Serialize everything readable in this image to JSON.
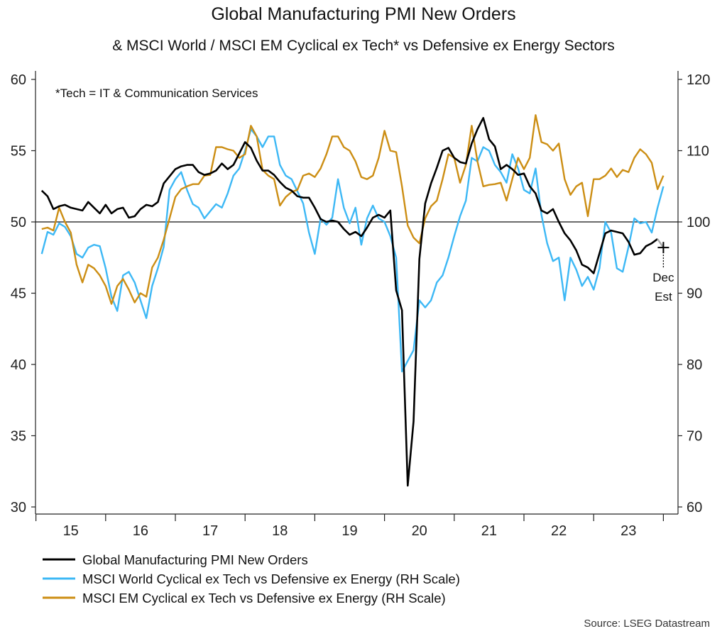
{
  "chart_data": {
    "type": "line",
    "title": "Global Manufacturing PMI New Orders",
    "subtitle": "& MSCI World / MSCI EM Cyclical ex Tech* vs Defensive ex Energy Sectors",
    "note": "*Tech = IT & Communication Services",
    "source": "Source: LSEG Datastream",
    "x_tick_labels": [
      "15",
      "16",
      "17",
      "18",
      "19",
      "20",
      "21",
      "22",
      "23"
    ],
    "x_range": [
      "2015-01",
      "2024-02"
    ],
    "frequency": "monthly",
    "y_left": {
      "range": [
        30,
        60
      ],
      "ticks": [
        30,
        35,
        40,
        45,
        50,
        55,
        60
      ]
    },
    "y_right": {
      "range": [
        60,
        120
      ],
      "ticks": [
        60,
        70,
        80,
        90,
        100,
        110,
        120
      ]
    },
    "reference_line": {
      "left_value": 50,
      "right_value": 100
    },
    "grid": false,
    "legend_position": "bottom-left",
    "annotation": {
      "line1": "Dec",
      "line2": "Est",
      "date": "2023-12",
      "value": 48.2
    },
    "series": [
      {
        "name": "Global Manufacturing PMI New Orders",
        "axis": "left",
        "color": "#000000",
        "start": "2015-01",
        "values": [
          52.2,
          51.8,
          50.9,
          51.1,
          51.2,
          51.0,
          50.9,
          50.8,
          51.4,
          51.0,
          50.6,
          51.2,
          50.6,
          50.9,
          51.0,
          50.3,
          50.4,
          50.9,
          51.2,
          51.1,
          51.4,
          52.7,
          53.2,
          53.7,
          53.9,
          54.0,
          54.0,
          53.5,
          53.3,
          53.4,
          53.6,
          54.1,
          53.7,
          54.0,
          54.8,
          55.6,
          55.2,
          54.3,
          53.6,
          53.6,
          53.3,
          52.8,
          52.4,
          52.2,
          51.8,
          51.7,
          51.7,
          51.0,
          50.2,
          50.0,
          50.1,
          50.0,
          49.5,
          49.1,
          49.3,
          49.0,
          49.6,
          50.3,
          50.5,
          50.3,
          50.8,
          45.2,
          43.8,
          31.5,
          36.0,
          47.4,
          51.3,
          52.7,
          53.8,
          55.0,
          55.2,
          54.5,
          54.2,
          54.1,
          55.5,
          56.5,
          57.3,
          55.8,
          55.3,
          53.7,
          54.0,
          53.7,
          53.3,
          53.4,
          52.5,
          52.0,
          50.8,
          50.6,
          50.9,
          50.0,
          49.2,
          48.7,
          48.0,
          47.0,
          46.8,
          46.4,
          47.8,
          49.2,
          49.4,
          49.3,
          49.2,
          48.6,
          47.7,
          47.8,
          48.3,
          48.5,
          48.8
        ]
      },
      {
        "name": "MSCI World Cyclical ex Tech vs Defensive ex Energy (RH Scale)",
        "axis": "right",
        "color": "#3db8f5",
        "start": "2015-01",
        "values": [
          95.5,
          98.6,
          98.2,
          99.8,
          99.3,
          98.0,
          95.5,
          95.0,
          96.4,
          96.8,
          96.6,
          93.5,
          89.5,
          87.5,
          92.5,
          93.0,
          91.5,
          89.0,
          86.5,
          91.0,
          93.5,
          96.5,
          104.5,
          106.0,
          107.0,
          104.5,
          102.5,
          102.0,
          100.5,
          101.5,
          102.5,
          102.0,
          104.0,
          106.5,
          107.5,
          110.0,
          113.0,
          112.0,
          110.5,
          112.0,
          112.0,
          108.0,
          106.5,
          106.0,
          104.3,
          102.6,
          98.5,
          95.5,
          100.5,
          99.6,
          100.6,
          106.0,
          102.0,
          99.8,
          102.0,
          96.8,
          100.5,
          102.3,
          100.5,
          100.0,
          98.0,
          95.0,
          79.0,
          80.5,
          82.0,
          89.0,
          88.0,
          89.0,
          91.5,
          92.5,
          95.0,
          98.0,
          100.8,
          103.0,
          109.0,
          108.5,
          110.5,
          110.0,
          108.0,
          107.0,
          105.5,
          109.5,
          107.5,
          104.5,
          104.0,
          107.5,
          101.0,
          97.0,
          94.5,
          95.0,
          89.0,
          95.0,
          93.3,
          91.0,
          92.3,
          90.5,
          93.5,
          100.0,
          98.5,
          93.5,
          93.0,
          96.5,
          100.5,
          99.8,
          100.0,
          98.5,
          102.0,
          105.0
        ]
      },
      {
        "name": "MSCI EM Cyclical ex Tech vs Defensive ex Energy (RH Scale)",
        "axis": "right",
        "color": "#cc8e14",
        "start": "2015-01",
        "values": [
          99.0,
          99.2,
          98.8,
          102.0,
          100.0,
          98.5,
          94.0,
          91.5,
          94.0,
          93.5,
          92.5,
          91.0,
          88.5,
          91.0,
          92.0,
          90.5,
          88.7,
          90.0,
          89.5,
          93.6,
          95.0,
          97.5,
          100.5,
          103.5,
          104.6,
          105.0,
          105.3,
          105.3,
          106.5,
          106.6,
          110.5,
          110.5,
          110.2,
          110.0,
          109.0,
          109.5,
          113.5,
          112.0,
          107.3,
          106.5,
          106.0,
          102.3,
          103.5,
          104.2,
          104.5,
          106.5,
          106.8,
          106.3,
          107.5,
          109.5,
          112.0,
          112.0,
          110.5,
          110.0,
          108.5,
          106.3,
          106.0,
          106.5,
          109.0,
          112.8,
          110.0,
          109.8,
          105.0,
          99.5,
          97.8,
          97.0,
          100.5,
          102.2,
          103.0,
          106.0,
          109.5,
          109.0,
          105.5,
          108.0,
          113.5,
          108.5,
          105.0,
          105.2,
          105.3,
          105.5,
          103.0,
          106.0,
          109.0,
          107.4,
          109.0,
          115.0,
          111.2,
          110.9,
          110.0,
          111.0,
          106.0,
          103.8,
          105.0,
          105.5,
          100.8,
          106.0,
          106.0,
          106.5,
          107.5,
          106.3,
          107.3,
          107.0,
          109.0,
          110.2,
          109.5,
          108.3,
          104.6,
          106.5
        ]
      }
    ]
  }
}
